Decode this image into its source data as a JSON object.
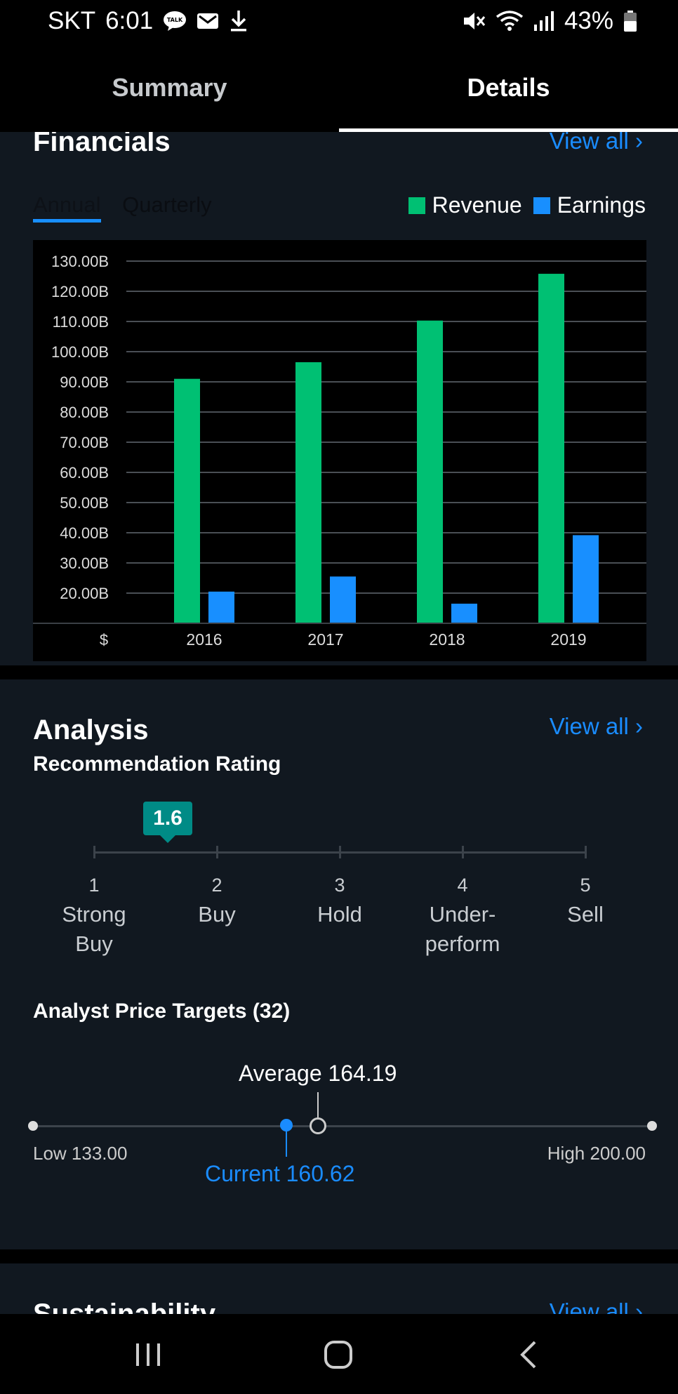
{
  "status_bar": {
    "carrier": "SKT",
    "time": "6:01",
    "battery": "43%"
  },
  "tabs": [
    {
      "label": "Summary",
      "active": false
    },
    {
      "label": "Details",
      "active": true
    }
  ],
  "financials": {
    "title": "Financials",
    "view_all": "View all ›",
    "tab_annual": "Annual",
    "tab_quarterly": "Quarterly",
    "legend": {
      "revenue": "Revenue",
      "earnings": "Earnings"
    },
    "currency_label": "$"
  },
  "chart_data": {
    "type": "bar",
    "categories": [
      "2016",
      "2017",
      "2018",
      "2019"
    ],
    "series": [
      {
        "name": "Revenue",
        "values": [
          91.0,
          96.5,
          110.3,
          125.8
        ],
        "color": "#00c073"
      },
      {
        "name": "Earnings",
        "values": [
          20.5,
          25.5,
          16.5,
          39.2
        ],
        "color": "#188fff"
      }
    ],
    "ytick_labels": [
      "20.00B",
      "30.00B",
      "40.00B",
      "50.00B",
      "60.00B",
      "70.00B",
      "80.00B",
      "90.00B",
      "100.00B",
      "110.00B",
      "120.00B",
      "130.00B"
    ],
    "ylim": [
      10,
      130
    ],
    "ytick_values": [
      20,
      30,
      40,
      50,
      60,
      70,
      80,
      90,
      100,
      110,
      120,
      130
    ],
    "grid": true,
    "legend_position": "top-right"
  },
  "analysis": {
    "title": "Analysis",
    "view_all": "View all ›",
    "rating_title": "Recommendation Rating",
    "rating_value": "1.6",
    "rating_scale": [
      {
        "num": "1",
        "label1": "Strong",
        "label2": "Buy"
      },
      {
        "num": "2",
        "label1": "Buy",
        "label2": ""
      },
      {
        "num": "3",
        "label1": "Hold",
        "label2": ""
      },
      {
        "num": "4",
        "label1": "Under-",
        "label2": "perform"
      },
      {
        "num": "5",
        "label1": "Sell",
        "label2": ""
      }
    ],
    "price_targets_title": "Analyst Price Targets (32)",
    "average_label": "Average 164.19",
    "low_label": "Low 133.00",
    "high_label": "High 200.00",
    "current_label": "Current 160.62",
    "low": 133.0,
    "high": 200.0,
    "average": 164.19,
    "current": 160.62,
    "accent": "#1a8cff",
    "rating_badge_color": "#008b86"
  },
  "sustainability": {
    "title": "Sustainability",
    "view_all": "View all ›"
  }
}
